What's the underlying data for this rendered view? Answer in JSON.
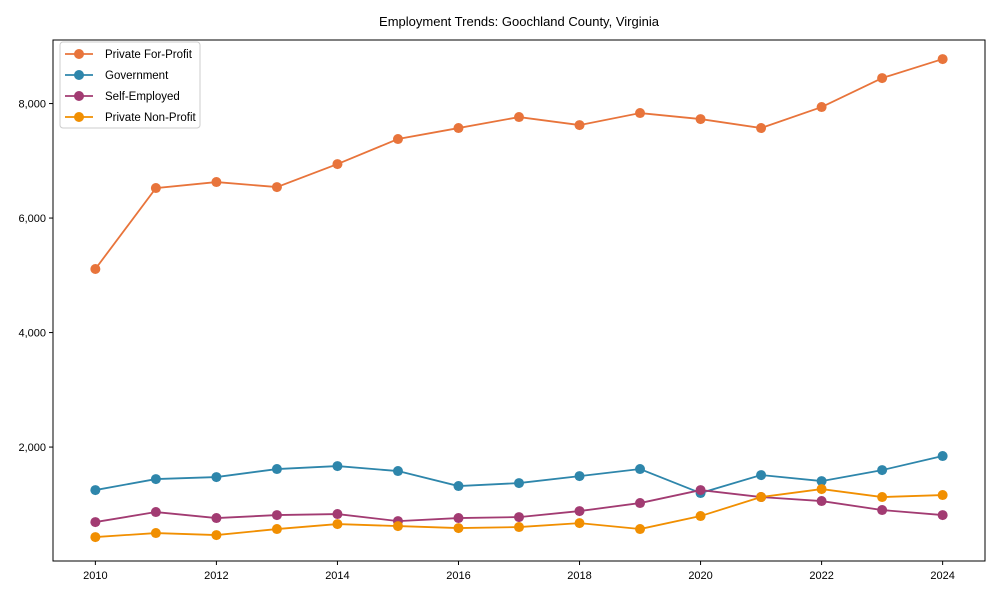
{
  "chart_data": {
    "type": "line",
    "title": "Employment Trends: Goochland County, Virginia",
    "xlabel": "",
    "ylabel": "",
    "x": [
      2010,
      2011,
      2012,
      2013,
      2014,
      2015,
      2016,
      2017,
      2018,
      2019,
      2020,
      2021,
      2022,
      2023,
      2024
    ],
    "xlim": [
      2009.3,
      2024.7
    ],
    "ylim": [
      10,
      9110
    ],
    "xticks": [
      "2010",
      "2012",
      "2014",
      "2016",
      "2018",
      "2020",
      "2022",
      "2024"
    ],
    "xtick_values": [
      2010,
      2012,
      2014,
      2016,
      2018,
      2020,
      2022,
      2024
    ],
    "yticks": [
      "2,000",
      "4,000",
      "6,000",
      "8,000"
    ],
    "ytick_values": [
      2000,
      4000,
      6000,
      8000
    ],
    "grid": false,
    "legend_position": "top-left",
    "series": [
      {
        "name": "Private For-Profit",
        "color": "#E8743B",
        "values": [
          5110,
          6524,
          6629,
          6541,
          6943,
          7380,
          7572,
          7764,
          7624,
          7834,
          7729,
          7572,
          7939,
          8445,
          8777
        ]
      },
      {
        "name": "Government",
        "color": "#2E86AB",
        "values": [
          1249,
          1441,
          1476,
          1616,
          1668,
          1581,
          1319,
          1371,
          1493,
          1616,
          1197,
          1511,
          1406,
          1598,
          1843
        ]
      },
      {
        "name": "Self-Employed",
        "color": "#A23B72",
        "values": [
          690,
          865,
          760,
          812,
          830,
          707,
          760,
          777,
          882,
          1022,
          1249,
          1127,
          1057,
          900,
          812
        ]
      },
      {
        "name": "Private Non-Profit",
        "color": "#F18F01",
        "values": [
          428,
          498,
          463,
          568,
          655,
          620,
          585,
          603,
          672,
          568,
          795,
          1127,
          1266,
          1127,
          1162
        ]
      }
    ]
  }
}
